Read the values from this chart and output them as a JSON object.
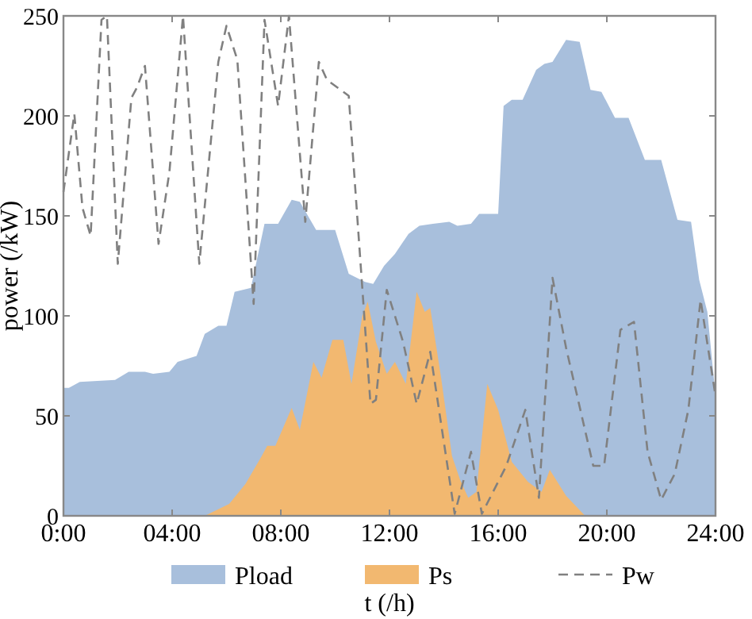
{
  "chart_data": {
    "type": "area",
    "xlabel": "t (/h)",
    "ylabel": "power (/kW)",
    "xlim": [
      0,
      24
    ],
    "ylim": [
      0,
      250
    ],
    "xticks": [
      {
        "value": 0,
        "label": "0:00"
      },
      {
        "value": 4,
        "label": "04:00"
      },
      {
        "value": 8,
        "label": "08:00"
      },
      {
        "value": 12,
        "label": "12:00"
      },
      {
        "value": 16,
        "label": "16:00"
      },
      {
        "value": 20,
        "label": "20:00"
      },
      {
        "value": 24,
        "label": "24:00"
      }
    ],
    "yticks": [
      0,
      50,
      100,
      150,
      200,
      250
    ],
    "grid": false,
    "legend": "bottom",
    "series": [
      {
        "name": "Pload",
        "color": "#a8bfdc",
        "x": [
          0,
          0.2,
          0.6,
          1.9,
          2.4,
          3.0,
          3.3,
          3.9,
          4.2,
          4.9,
          5.2,
          5.7,
          6.0,
          6.3,
          6.9,
          7.4,
          7.9,
          8.4,
          8.7,
          9.3,
          10.0,
          10.5,
          11.1,
          11.4,
          11.8,
          12.2,
          12.7,
          13.1,
          13.6,
          14.2,
          14.5,
          15.0,
          15.3,
          16.0,
          16.2,
          16.5,
          16.9,
          17.4,
          17.7,
          18.0,
          18.5,
          19.0,
          19.4,
          19.8,
          20.3,
          20.8,
          21.4,
          22.0,
          22.6,
          23.1,
          23.4,
          23.7,
          24.0
        ],
        "values": [
          64,
          64,
          67,
          68,
          72,
          72,
          71,
          72,
          77,
          80,
          91,
          95,
          95,
          112,
          114,
          146,
          146,
          158,
          157,
          143,
          143,
          121,
          117,
          116,
          125,
          131,
          141,
          145,
          146,
          147,
          145,
          146,
          151,
          151,
          205,
          208,
          208,
          223,
          226,
          227,
          238,
          237,
          213,
          212,
          199,
          199,
          178,
          178,
          148,
          147,
          118,
          102,
          60
        ]
      },
      {
        "name": "Ps",
        "color": "#f2b870",
        "x": [
          0,
          5.2,
          6.1,
          6.7,
          7.3,
          7.5,
          7.8,
          8.4,
          8.7,
          9.2,
          9.5,
          9.9,
          10.3,
          10.6,
          11.0,
          11.2,
          11.5,
          11.9,
          12.2,
          12.6,
          13.0,
          13.3,
          13.5,
          13.9,
          14.3,
          14.6,
          14.9,
          15.2,
          15.6,
          16.0,
          16.5,
          17.1,
          17.6,
          17.9,
          18.5,
          19.2,
          24
        ],
        "values": [
          0,
          0,
          6,
          16,
          30,
          35,
          35,
          54,
          43,
          77,
          69,
          88,
          88,
          66,
          100,
          107,
          87,
          71,
          77,
          66,
          112,
          102,
          104,
          69,
          30,
          18,
          9,
          12,
          66,
          53,
          27,
          17,
          12,
          23,
          10,
          0,
          0
        ]
      },
      {
        "name": "Pw",
        "type": "line",
        "line_style": "dashed",
        "color": "#808080",
        "x": [
          0,
          0.4,
          0.7,
          1.0,
          1.4,
          1.6,
          2.0,
          2.5,
          2.7,
          3.0,
          3.5,
          3.9,
          4.4,
          5.0,
          5.7,
          6.0,
          6.4,
          7.0,
          7.4,
          7.9,
          8.3,
          8.9,
          9.4,
          9.7,
          10.5,
          11.3,
          11.5,
          11.9,
          12.5,
          13.0,
          13.5,
          14.4,
          15.0,
          15.4,
          16.3,
          17.0,
          17.5,
          18.0,
          18.5,
          19.5,
          19.9,
          20.5,
          21.0,
          21.5,
          22.0,
          22.5,
          23.0,
          23.45,
          24.0
        ],
        "values": [
          162,
          201,
          154,
          140,
          248,
          250,
          126,
          209,
          214,
          225,
          136,
          172,
          250,
          126,
          227,
          245,
          228,
          106,
          248,
          205,
          250,
          147,
          227,
          218,
          210,
          56,
          58,
          113,
          87,
          56,
          82,
          1,
          32,
          1,
          25,
          53,
          9,
          119,
          84,
          25,
          25,
          93,
          97,
          32,
          8,
          21,
          53,
          108,
          60
        ]
      }
    ]
  }
}
